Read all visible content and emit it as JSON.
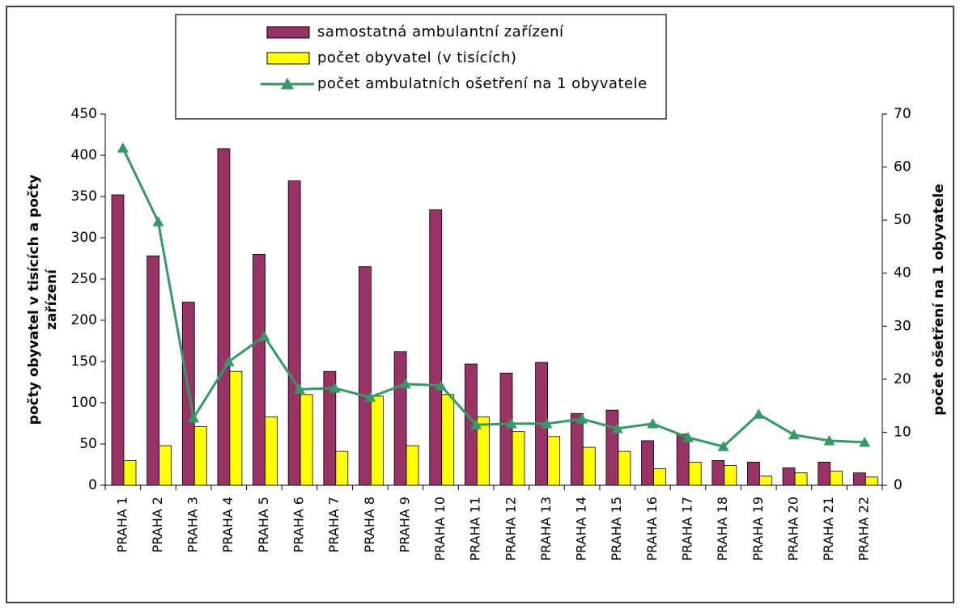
{
  "chart_data": {
    "type": "bar_line",
    "categories": [
      "PRAHA 1",
      "PRAHA 2",
      "PRAHA 3",
      "PRAHA 4",
      "PRAHA 5",
      "PRAHA 6",
      "PRAHA 7",
      "PRAHA 8",
      "PRAHA 9",
      "PRAHA 10",
      "PRAHA 11",
      "PRAHA 12",
      "PRAHA 13",
      "PRAHA 14",
      "PRAHA 15",
      "PRAHA 16",
      "PRAHA 17",
      "PRAHA 18",
      "PRAHA 19",
      "PRAHA 20",
      "PRAHA 21",
      "PRAHA 22"
    ],
    "series": [
      {
        "name": "samostatná ambulantní zařízení",
        "type": "bar",
        "color": "#993366",
        "values": [
          352,
          278,
          222,
          408,
          280,
          369,
          138,
          265,
          162,
          334,
          147,
          136,
          149,
          87,
          91,
          54,
          62,
          30,
          28,
          21,
          28,
          15
        ]
      },
      {
        "name": "počet obyvatel (v tisících)",
        "type": "bar",
        "color": "#ffff00",
        "values": [
          30,
          48,
          71,
          138,
          83,
          110,
          41,
          108,
          48,
          110,
          83,
          65,
          59,
          46,
          41,
          20,
          28,
          24,
          11,
          15,
          17,
          10
        ]
      },
      {
        "name": "počet ambulatních ošetření na 1 obyvatele",
        "type": "line",
        "axis": "y2",
        "color": "#339966",
        "values": [
          63.6,
          49.7,
          12.7,
          23.3,
          28.1,
          18.1,
          18.3,
          16.6,
          19.1,
          18.8,
          11.4,
          11.6,
          11.6,
          12.5,
          10.7,
          11.6,
          9.0,
          7.3,
          13.4,
          9.5,
          8.4,
          8.1
        ]
      }
    ],
    "ylabel": [
      "počty obyvatel v tisících a počty",
      "zařízení"
    ],
    "y2label": "počet ošetření na 1 obyvatele",
    "ylim": [
      0,
      450
    ],
    "yticks": [
      0,
      50,
      100,
      150,
      200,
      250,
      300,
      350,
      400,
      450
    ],
    "y2lim": [
      0,
      70
    ],
    "y2ticks": [
      0,
      10,
      20,
      30,
      40,
      50,
      60,
      70
    ],
    "legend": "top"
  }
}
